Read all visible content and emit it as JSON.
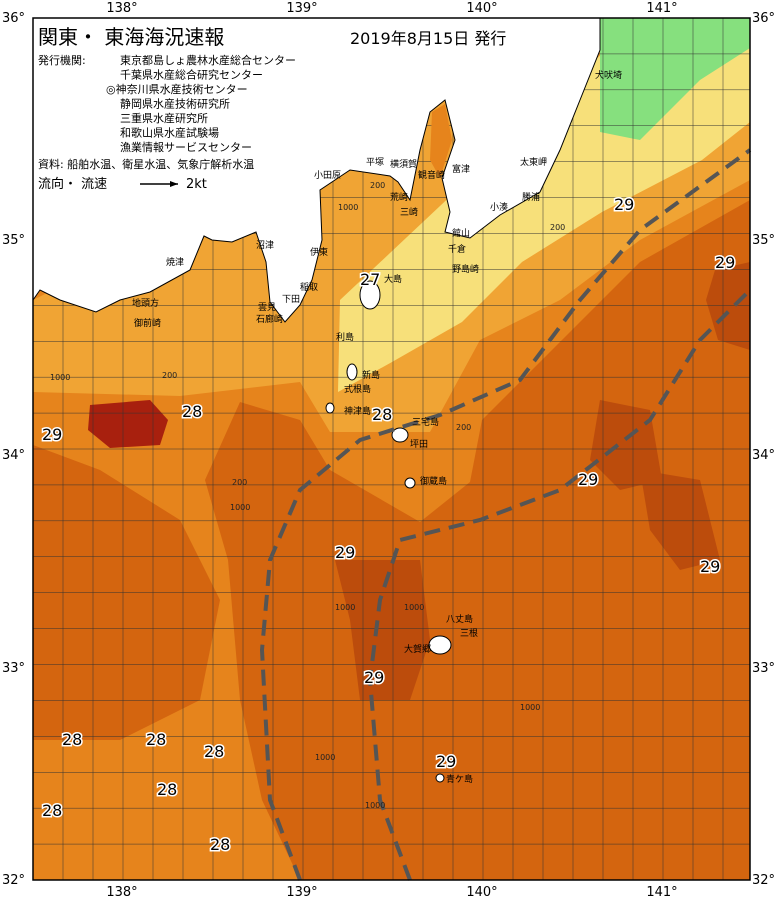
{
  "header": {
    "title": "関東・ 東海海況速報",
    "date": "2019年8月15日 発行",
    "issuer_label": "発行機関:",
    "issuers": [
      "東京都島しょ農林水産総合センター",
      "千葉県水産総合研究センター",
      "◎神奈川県水産技術センター",
      "静岡県水産技術研究所",
      "三重県水産研究所",
      "和歌山県水産試験場",
      "漁業情報サービスセンター"
    ],
    "sources": "資料: 船舶水温、衛星水温、気象庁解析水温",
    "legend_label": "流向・ 流速",
    "legend_speed": "2kt"
  },
  "axes": {
    "lon_labels": [
      "138°",
      "139°",
      "140°",
      "141°"
    ],
    "lat_labels": [
      "36°",
      "35°",
      "34°",
      "33°",
      "32°"
    ]
  },
  "places": [
    "犬吠埼",
    "太東岬",
    "勝浦",
    "小湊",
    "館山",
    "千倉",
    "野島崎",
    "富津",
    "横須賀",
    "観音崎",
    "三崎",
    "平塚",
    "小田原",
    "荒崎",
    "伊東",
    "大島",
    "稲取",
    "下田",
    "雲見",
    "石廊崎",
    "沼津",
    "焼津",
    "地頭方",
    "御前崎",
    "利島",
    "新島",
    "式根島",
    "神津島",
    "三宅島",
    "坪田",
    "御蔵島",
    "八丈島",
    "三根",
    "大賀郷",
    "青ケ島"
  ],
  "temperatures": [
    "27",
    "29",
    "28",
    "28",
    "29",
    "29",
    "29",
    "29",
    "29",
    "29",
    "28",
    "28",
    "28",
    "28",
    "28",
    "28",
    "29"
  ],
  "depth_labels": [
    "200",
    "1000",
    "200",
    "1000",
    "200",
    "1000",
    "1000",
    "1000",
    "1000",
    "200",
    "1000",
    "1000",
    "200"
  ]
}
